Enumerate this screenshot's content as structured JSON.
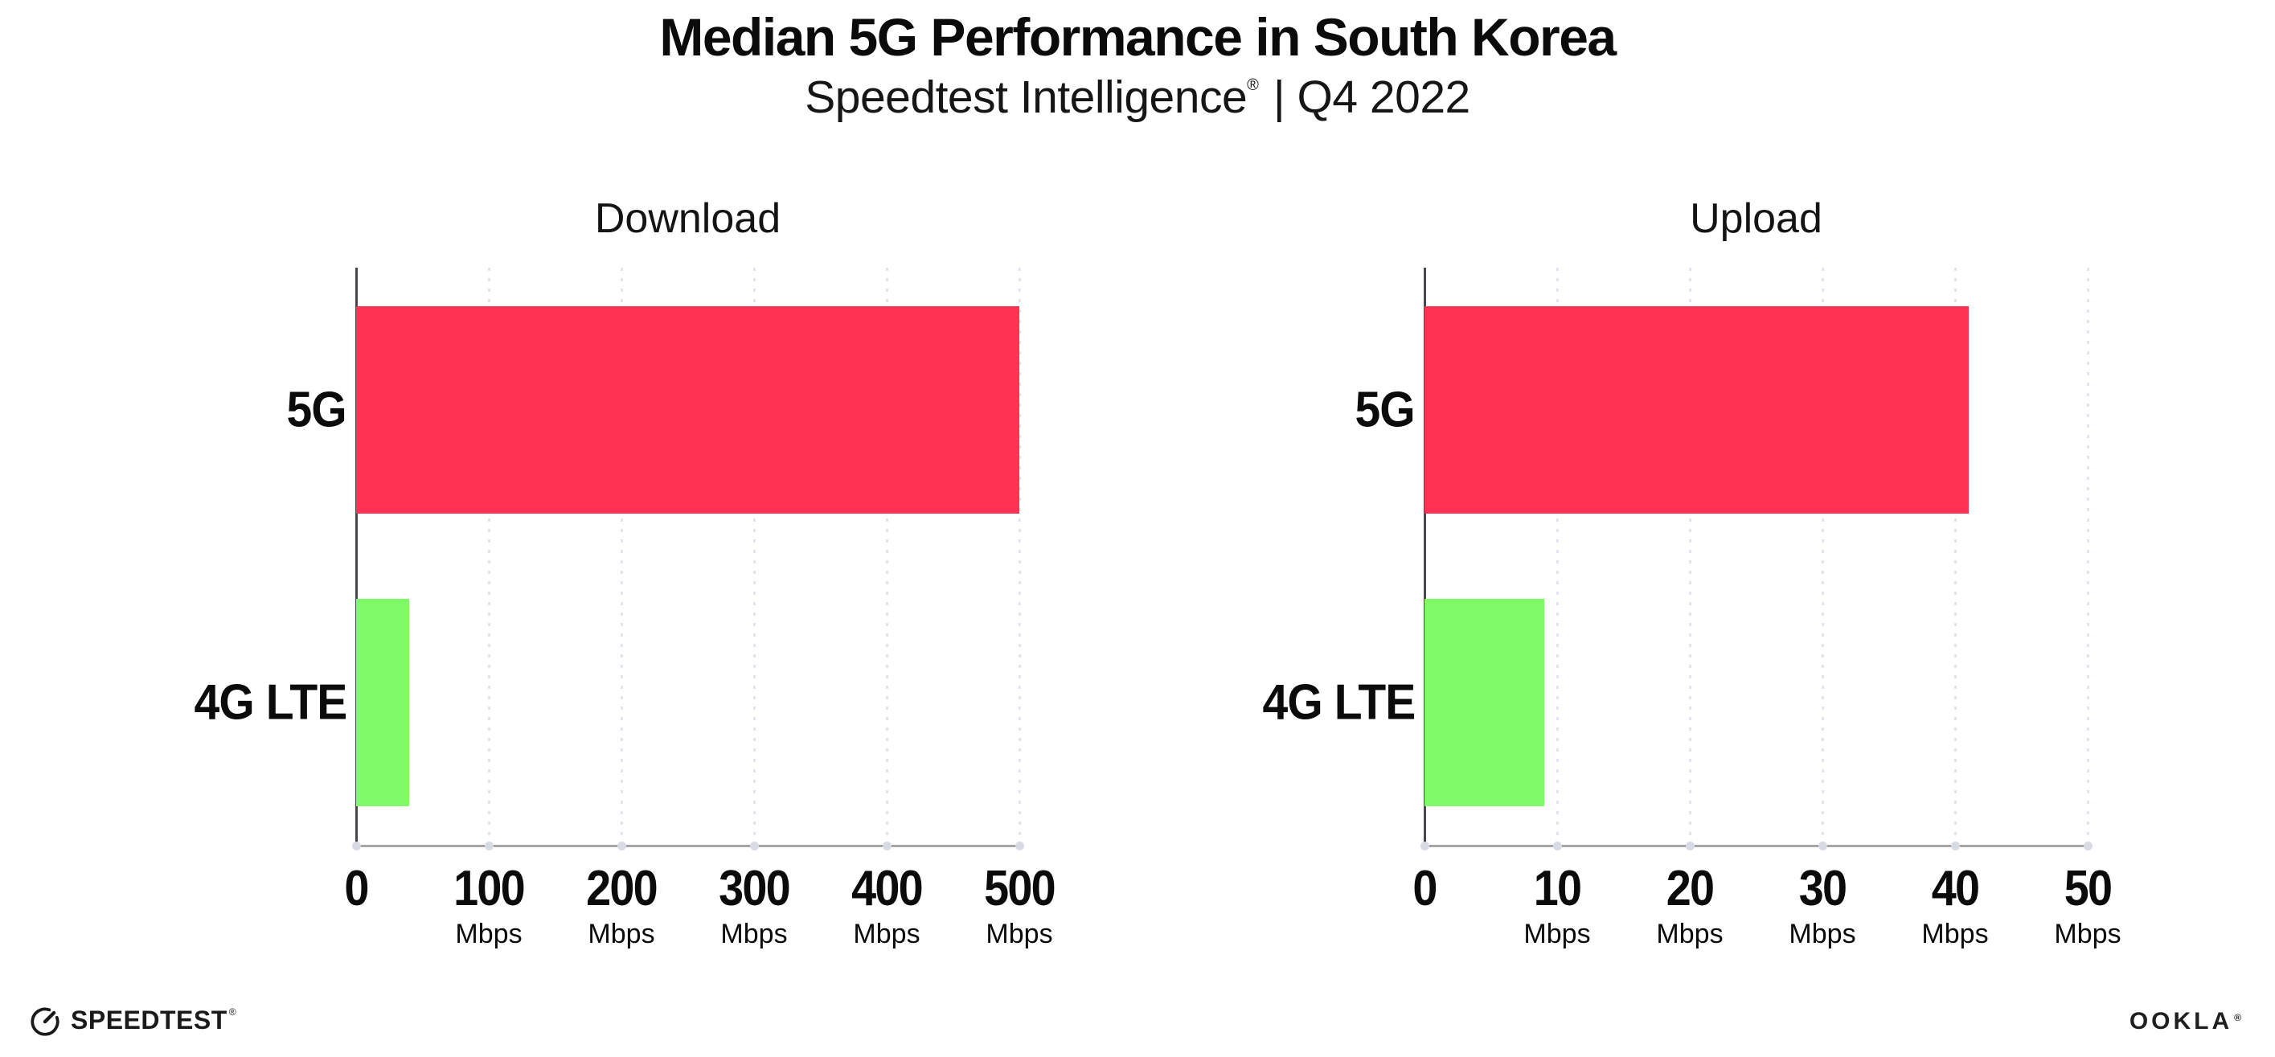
{
  "header": {
    "title": "Median 5G Performance in South Korea",
    "subtitle_brand": "Speedtest Intelligence",
    "subtitle_reg": "®",
    "subtitle_rest": "| Q4 2022"
  },
  "colors": {
    "bar_5g": "#FF3254",
    "bar_4g": "#80FA66",
    "x_axis_line": "#A6A6A8",
    "y_axis_line": "#47474D",
    "gridline_dots": "#E2E3ED",
    "baseline_dots": "#D8DAE4",
    "text": "#0B0B0B",
    "background": "#FFFFFF"
  },
  "chart_data": [
    {
      "type": "bar",
      "orientation": "horizontal",
      "title": "Download",
      "categories": [
        "5G",
        "4G LTE"
      ],
      "values": [
        500,
        40
      ],
      "unit": "Mbps",
      "xlim": [
        0,
        500
      ],
      "xticks": [
        0,
        100,
        200,
        300,
        400,
        500
      ],
      "tick_unit_label": "Mbps",
      "grid": "vertical dotted gridlines at each tick",
      "legend": "none",
      "bar_colors": [
        "#FF3254",
        "#80FA66"
      ]
    },
    {
      "type": "bar",
      "orientation": "horizontal",
      "title": "Upload",
      "categories": [
        "5G",
        "4G LTE"
      ],
      "values": [
        41,
        9
      ],
      "unit": "Mbps",
      "xlim": [
        0,
        50
      ],
      "xticks": [
        0,
        10,
        20,
        30,
        40,
        50
      ],
      "tick_unit_label": "Mbps",
      "grid": "vertical dotted gridlines at each tick",
      "legend": "none",
      "bar_colors": [
        "#FF3254",
        "#80FA66"
      ]
    }
  ],
  "footer": {
    "speedtest_logo_text": "SPEEDTEST",
    "speedtest_reg": "®",
    "ookla_logo_text": "OOKLA",
    "ookla_reg": "®"
  }
}
